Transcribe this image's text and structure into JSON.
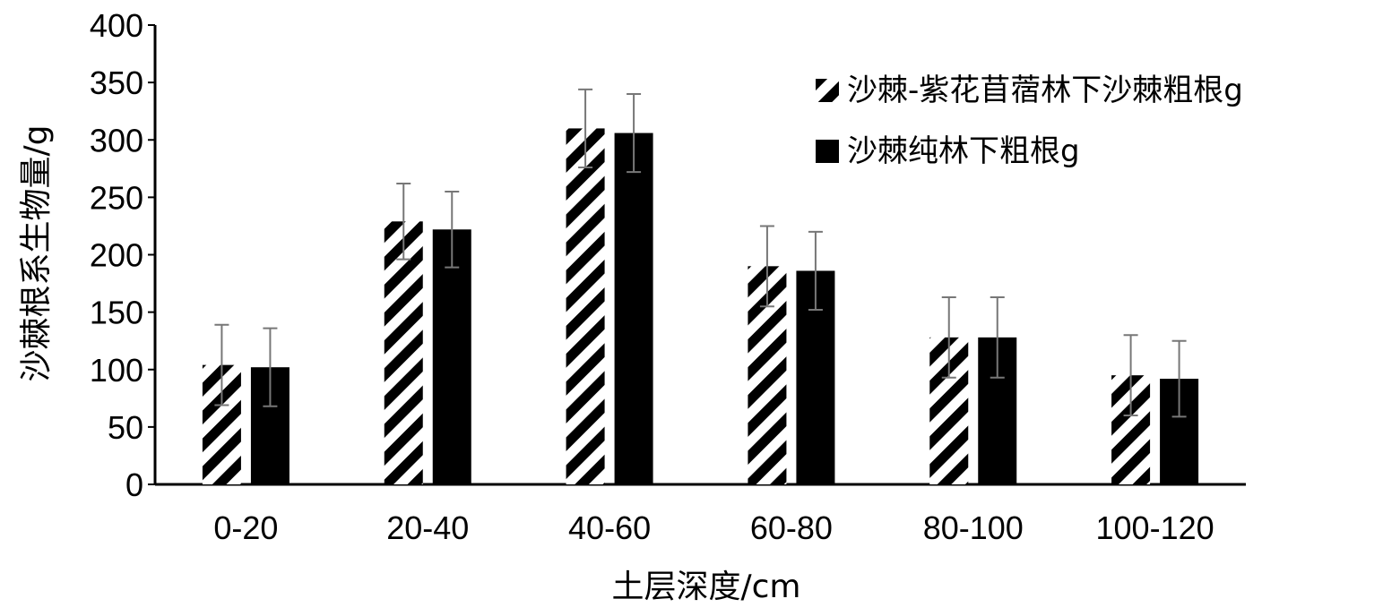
{
  "chart_data": {
    "type": "bar",
    "title": "",
    "xlabel": "土层深度/cm",
    "ylabel": "沙棘根系生物量/g",
    "ylim": [
      0,
      400
    ],
    "yticks": [
      0,
      50,
      100,
      150,
      200,
      250,
      300,
      350,
      400
    ],
    "categories": [
      "0-20",
      "20-40",
      "40-60",
      "60-80",
      "80-100",
      "100-120"
    ],
    "series": [
      {
        "name": "沙棘-紫花苜蓿林下沙棘粗根g",
        "pattern": "hatched",
        "values": [
          104,
          229,
          310,
          190,
          128,
          95
        ],
        "errors": [
          35,
          33,
          34,
          35,
          35,
          35
        ]
      },
      {
        "name": "沙棘纯林下粗根g",
        "pattern": "solid",
        "color": "#000000",
        "values": [
          102,
          222,
          306,
          186,
          128,
          92
        ],
        "errors": [
          34,
          33,
          34,
          34,
          35,
          33
        ]
      }
    ],
    "legend_position": "top-right",
    "grid": false
  }
}
